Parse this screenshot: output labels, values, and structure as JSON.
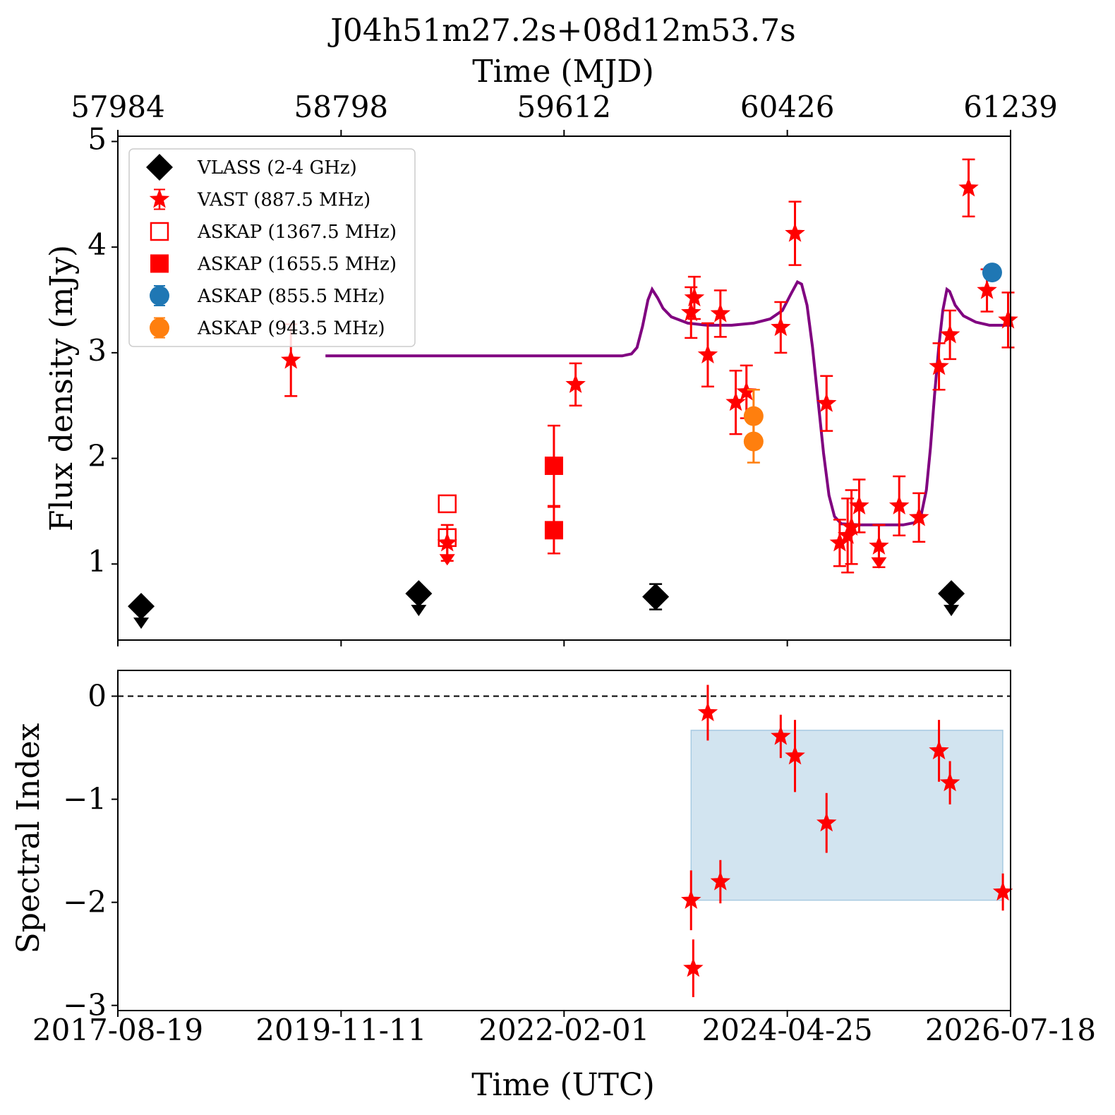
{
  "chart_data": {
    "type": "scatter",
    "title": "J04h51m27.2s+08d12m53.7s",
    "top_axis": {
      "label": "Time (MJD)",
      "ticks": [
        "57984",
        "58798",
        "59612",
        "60426",
        "61239"
      ]
    },
    "x_axis": {
      "label": "Time (UTC)",
      "range": [
        "2017-08-19",
        "2026-07-18"
      ],
      "ticks": [
        "2017-08-19",
        "2019-11-11",
        "2022-02-01",
        "2024-04-25",
        "2026-07-18"
      ]
    },
    "legend": {
      "placement": "top-left",
      "entries": [
        {
          "label": "VLASS (2-4 GHz)",
          "marker": "diamond",
          "color": "#000000"
        },
        {
          "label": "VAST (887.5 MHz)",
          "marker": "star",
          "color": "#ff0000"
        },
        {
          "label": "ASKAP (1367.5 MHz)",
          "marker": "open-square",
          "color": "#ff0000"
        },
        {
          "label": "ASKAP (1655.5 MHz)",
          "marker": "filled-square",
          "color": "#ff0000"
        },
        {
          "label": "ASKAP (855.5 MHz)",
          "marker": "circle",
          "color": "#1f77b4"
        },
        {
          "label": "ASKAP (943.5 MHz)",
          "marker": "circle",
          "color": "#ff7f0e"
        }
      ]
    },
    "flux_panel": {
      "ylabel": "Flux density (mJy)",
      "ylim": [
        0.28,
        5.05
      ],
      "yticks": [
        "1",
        "2",
        "3",
        "4",
        "5"
      ],
      "series": [
        {
          "name": "VLASS (2-4 GHz)",
          "marker": "diamond",
          "color": "#000000",
          "points": [
            {
              "x": "2017-11-12",
              "y": 0.6,
              "upper_limit": true
            },
            {
              "x": "2020-08-20",
              "y": 0.72,
              "upper_limit": true
            },
            {
              "x": "2023-01-01",
              "y": 0.69,
              "err": 0.12
            },
            {
              "x": "2025-12-14",
              "y": 0.72,
              "upper_limit": true
            }
          ]
        },
        {
          "name": "VAST (887.5 MHz)",
          "marker": "star",
          "color": "#ff0000",
          "points": [
            {
              "x": "2019-05-12",
              "y": 2.93,
              "err": 0.34
            },
            {
              "x": "2020-12-02",
              "y": 1.2,
              "err": 0.17,
              "upper_limit": true
            },
            {
              "x": "2022-03-15",
              "y": 2.7,
              "err": 0.2
            },
            {
              "x": "2023-05-10",
              "y": 3.38,
              "err": 0.24
            },
            {
              "x": "2023-05-22",
              "y": 3.52,
              "err": 0.2
            },
            {
              "x": "2023-07-10",
              "y": 2.98,
              "err": 0.3
            },
            {
              "x": "2023-08-25",
              "y": 3.37,
              "err": 0.22
            },
            {
              "x": "2023-10-20",
              "y": 2.53,
              "err": 0.3
            },
            {
              "x": "2023-11-28",
              "y": 2.63,
              "err": 0.25
            },
            {
              "x": "2024-04-01",
              "y": 3.24,
              "err": 0.24
            },
            {
              "x": "2024-05-23",
              "y": 4.13,
              "err": 0.3
            },
            {
              "x": "2024-09-15",
              "y": 2.52,
              "err": 0.26
            },
            {
              "x": "2024-11-02",
              "y": 1.2,
              "err": 0.22
            },
            {
              "x": "2024-12-01",
              "y": 1.27,
              "err": 0.35
            },
            {
              "x": "2024-12-15",
              "y": 1.35,
              "err": 0.35
            },
            {
              "x": "2025-01-12",
              "y": 1.55,
              "err": 0.25
            },
            {
              "x": "2025-03-25",
              "y": 1.17,
              "err": 0.2,
              "upper_limit": true
            },
            {
              "x": "2025-06-07",
              "y": 1.55,
              "err": 0.28
            },
            {
              "x": "2025-08-18",
              "y": 1.44,
              "err": 0.23
            },
            {
              "x": "2025-10-30",
              "y": 2.87,
              "err": 0.22
            },
            {
              "x": "2025-12-09",
              "y": 3.17,
              "err": 0.23
            },
            {
              "x": "2026-02-15",
              "y": 4.56,
              "err": 0.27
            },
            {
              "x": "2026-04-23",
              "y": 3.59,
              "err": 0.2
            },
            {
              "x": "2026-07-09",
              "y": 3.31,
              "err": 0.26
            }
          ]
        },
        {
          "name": "ASKAP (1367.5 MHz)",
          "marker": "open-square",
          "color": "#ff0000",
          "points": [
            {
              "x": "2020-12-02",
              "y": 1.57
            },
            {
              "x": "2020-12-02",
              "y": 1.25
            }
          ]
        },
        {
          "name": "ASKAP (1655.5 MHz)",
          "marker": "filled-square",
          "color": "#ff0000",
          "points": [
            {
              "x": "2021-12-26",
              "y": 1.93,
              "err": 0.38
            },
            {
              "x": "2021-12-26",
              "y": 1.32,
              "err": 0.22
            }
          ]
        },
        {
          "name": "ASKAP (855.5 MHz)",
          "marker": "circle",
          "color": "#1f77b4",
          "points": [
            {
              "x": "2026-05-12",
              "y": 3.76,
              "err": 0.05
            }
          ]
        },
        {
          "name": "ASKAP (943.5 MHz)",
          "marker": "circle",
          "color": "#ff7f0e",
          "points": [
            {
              "x": "2023-12-24",
              "y": 2.4,
              "err": 0.25
            },
            {
              "x": "2023-12-24",
              "y": 2.16,
              "err": 0.2
            }
          ]
        }
      ],
      "model_curve": {
        "color": "#800080",
        "points": [
          [
            "2019-09-15",
            2.97
          ],
          [
            "2022-09-01",
            2.97
          ],
          [
            "2022-10-05",
            2.99
          ],
          [
            "2022-10-25",
            3.05
          ],
          [
            "2022-11-14",
            3.25
          ],
          [
            "2022-12-04",
            3.5
          ],
          [
            "2022-12-19",
            3.6
          ],
          [
            "2023-01-08",
            3.52
          ],
          [
            "2023-01-28",
            3.42
          ],
          [
            "2023-02-27",
            3.34
          ],
          [
            "2023-04-28",
            3.28
          ],
          [
            "2023-07-07",
            3.26
          ],
          [
            "2023-10-05",
            3.26
          ],
          [
            "2023-12-24",
            3.28
          ],
          [
            "2024-02-22",
            3.32
          ],
          [
            "2024-04-07",
            3.4
          ],
          [
            "2024-05-07",
            3.55
          ],
          [
            "2024-06-01",
            3.67
          ],
          [
            "2024-06-16",
            3.65
          ],
          [
            "2024-07-06",
            3.45
          ],
          [
            "2024-07-26",
            3.05
          ],
          [
            "2024-08-15",
            2.55
          ],
          [
            "2024-09-04",
            2.05
          ],
          [
            "2024-09-24",
            1.65
          ],
          [
            "2024-10-14",
            1.45
          ],
          [
            "2024-11-08",
            1.38
          ],
          [
            "2025-01-12",
            1.37
          ],
          [
            "2025-06-21",
            1.37
          ],
          [
            "2025-07-31",
            1.39
          ],
          [
            "2025-08-25",
            1.45
          ],
          [
            "2025-09-14",
            1.7
          ],
          [
            "2025-09-29",
            2.1
          ],
          [
            "2025-10-14",
            2.6
          ],
          [
            "2025-10-29",
            3.05
          ],
          [
            "2025-11-13",
            3.4
          ],
          [
            "2025-11-28",
            3.6
          ],
          [
            "2025-12-08",
            3.58
          ],
          [
            "2025-12-28",
            3.45
          ],
          [
            "2026-01-27",
            3.35
          ],
          [
            "2026-03-13",
            3.29
          ],
          [
            "2026-05-02",
            3.26
          ],
          [
            "2026-07-18",
            3.26
          ]
        ]
      }
    },
    "index_panel": {
      "ylabel": "Spectral Index",
      "ylim": [
        -3.05,
        0.25
      ],
      "yticks": [
        "0",
        "−1",
        "−2",
        "−3"
      ],
      "reference_line": 0,
      "shaded_band": {
        "x": [
          "2023-05-10",
          "2026-06-20"
        ],
        "y": [
          -1.98,
          -0.33
        ],
        "color": "#1f77b4"
      },
      "series": [
        {
          "name": "VAST (887.5 MHz)",
          "marker": "star",
          "color": "#ff0000",
          "points": [
            {
              "x": "2023-05-10",
              "y": -1.98,
              "err": 0.29
            },
            {
              "x": "2023-05-18",
              "y": -2.64,
              "err": 0.28
            },
            {
              "x": "2023-07-10",
              "y": -0.16,
              "err": 0.27
            },
            {
              "x": "2023-08-25",
              "y": -1.8,
              "err": 0.21
            },
            {
              "x": "2024-04-01",
              "y": -0.39,
              "err": 0.21
            },
            {
              "x": "2024-05-23",
              "y": -0.58,
              "err": 0.35
            },
            {
              "x": "2024-09-15",
              "y": -1.23,
              "err": 0.29
            },
            {
              "x": "2025-10-30",
              "y": -0.53,
              "err": 0.3
            },
            {
              "x": "2025-12-09",
              "y": -0.84,
              "err": 0.21
            },
            {
              "x": "2026-06-20",
              "y": -1.9,
              "err": 0.18
            }
          ]
        }
      ]
    }
  }
}
